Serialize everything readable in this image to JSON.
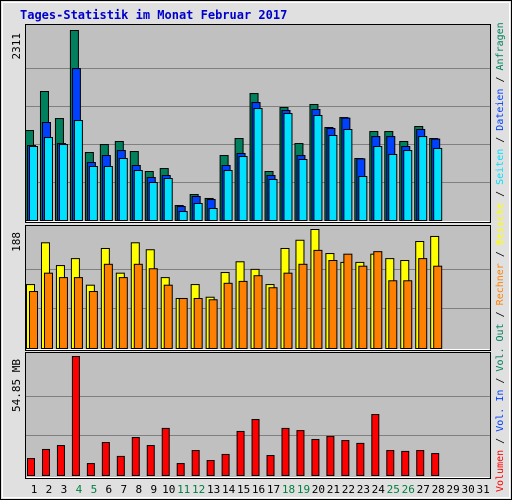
{
  "title": "Tages-Statistik im Monat Februar 2017",
  "legend_separator": " / ",
  "chart_data": [
    {
      "type": "bar",
      "ylim": [
        0,
        2311
      ],
      "yticks": [
        2311
      ],
      "series": [
        {
          "name": "Anfragen",
          "color": "#00805c",
          "values": [
            1094,
            1569,
            1240,
            2311,
            827,
            924,
            961,
            839,
            596,
            632,
            182,
            316,
            268,
            790,
            997,
            1544,
            596,
            1374,
            936,
            1411,
            1131,
            1252,
            754,
            1082,
            1082,
            961,
            1143,
            997,
            null,
            null,
            null
          ]
        },
        {
          "name": "Dateien",
          "color": "#0040ff",
          "values": [
            912,
            1192,
            936,
            1848,
            705,
            790,
            851,
            669,
            523,
            547,
            170,
            292,
            255,
            669,
            815,
            1435,
            547,
            1338,
            790,
            1350,
            1119,
            1245,
            750,
            1021,
            1021,
            900,
            1107,
            990,
            null,
            null,
            null
          ]
        },
        {
          "name": "Seiten",
          "color": "#00e0ff",
          "values": [
            900,
            1009,
            924,
            1216,
            657,
            657,
            754,
            608,
            462,
            511,
            109,
            207,
            146,
            608,
            778,
            1362,
            499,
            1301,
            742,
            1277,
            1034,
            1107,
            535,
            900,
            803,
            851,
            1021,
            876,
            null,
            null,
            null
          ]
        }
      ]
    },
    {
      "type": "bar",
      "ylim": [
        0,
        188
      ],
      "yticks": [
        188
      ],
      "series": [
        {
          "name": "Besuche",
          "color": "#ffff00",
          "values": [
            101,
            167,
            131,
            142,
            100,
            158,
            119,
            167,
            156,
            112,
            79,
            101,
            81,
            120,
            137,
            125,
            101,
            158,
            171,
            188,
            150,
            136,
            136,
            149,
            142,
            139,
            169,
            177,
            null,
            null,
            null
          ]
        },
        {
          "name": "Rechner",
          "color": "#ff8000",
          "values": [
            90,
            119,
            112,
            112,
            90,
            133,
            112,
            133,
            126,
            100,
            79,
            79,
            77,
            103,
            106,
            115,
            96,
            119,
            133,
            155,
            139,
            149,
            130,
            153,
            107,
            107,
            142,
            130,
            null,
            null,
            null
          ]
        }
      ]
    },
    {
      "type": "bar",
      "ylim": [
        0,
        54.85
      ],
      "yticks": [
        {
          "value": 54.85,
          "label": "54.85 MB"
        }
      ],
      "categories": [
        "1",
        "2",
        "3",
        "4",
        "5",
        "6",
        "7",
        "8",
        "9",
        "10",
        "11",
        "12",
        "13",
        "14",
        "15",
        "16",
        "17",
        "18",
        "19",
        "20",
        "21",
        "22",
        "23",
        "24",
        "25",
        "26",
        "27",
        "28",
        "29",
        "30",
        "31"
      ],
      "category_colors": [
        "#000000",
        "#000000",
        "#000000",
        "#008040",
        "#008040",
        "#000000",
        "#000000",
        "#000000",
        "#000000",
        "#000000",
        "#008040",
        "#008040",
        "#000000",
        "#000000",
        "#000000",
        "#000000",
        "#000000",
        "#008040",
        "#008040",
        "#000000",
        "#000000",
        "#000000",
        "#000000",
        "#000000",
        "#008040",
        "#008040",
        "#000000",
        "#000000",
        "#000000",
        "#000000",
        "#000000"
      ],
      "series": [
        {
          "name": "Volumen",
          "color": "#ff0000",
          "values": [
            7.8,
            12.0,
            13.8,
            54.85,
            5.5,
            15.2,
            8.8,
            17.5,
            13.8,
            21.7,
            5.5,
            11.5,
            6.9,
            9.7,
            20.3,
            25.8,
            9.2,
            21.7,
            20.7,
            16.6,
            18.0,
            16.1,
            14.8,
            28.1,
            11.5,
            11.1,
            11.5,
            10.1,
            null,
            null,
            null
          ]
        }
      ],
      "extra_legend": [
        {
          "name": "Vol. In",
          "color": "#0040ff"
        },
        {
          "name": "Vol. Out",
          "color": "#00805c"
        }
      ]
    }
  ]
}
